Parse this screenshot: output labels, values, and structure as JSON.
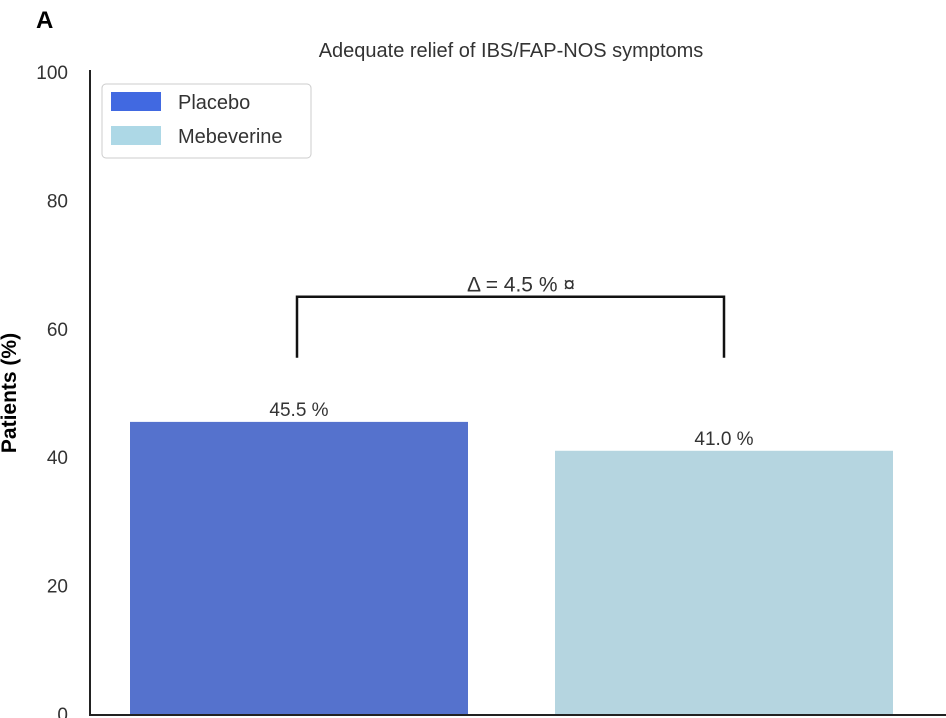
{
  "panel_label": "A",
  "chart_data": {
    "type": "bar",
    "title": "Adequate relief of IBS/FAP-NOS symptoms",
    "xlabel": "",
    "ylabel": "Patients (%)",
    "ylim": [
      0,
      100
    ],
    "yticks": [
      0,
      20,
      40,
      60,
      80,
      100
    ],
    "grid": false,
    "categories": [
      "Placebo",
      "Mebeverine"
    ],
    "values": [
      45.5,
      41.0
    ],
    "data_labels": [
      "45.5 %",
      "41.0 %"
    ],
    "colors": [
      "#5572CD",
      "#B5D5E0"
    ],
    "legend": {
      "placement": "top-left",
      "entries": [
        {
          "label": "Placebo",
          "color": "#4169E1"
        },
        {
          "label": "Mebeverine",
          "color": "#ADD8E6"
        }
      ]
    },
    "annotation": {
      "text": "Δ = 4.5 % ¤",
      "bracket_height": 65,
      "bracket_drop_to": 55.5
    }
  }
}
